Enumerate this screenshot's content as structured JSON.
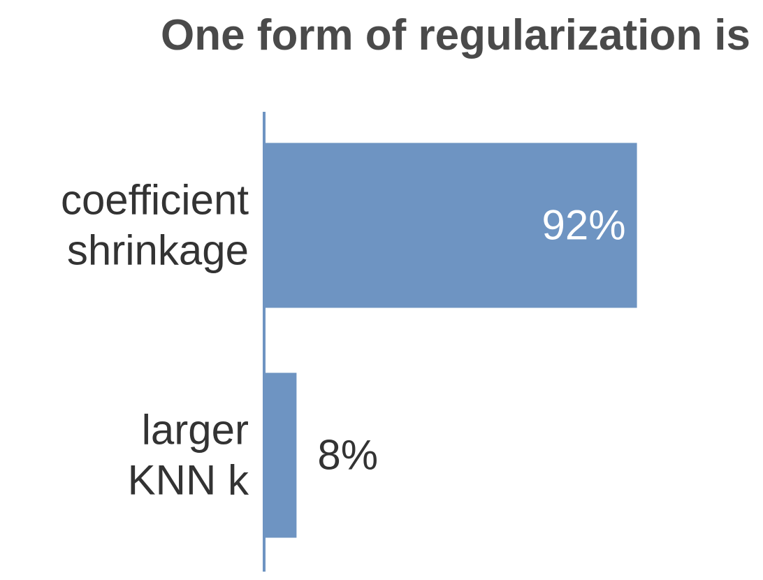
{
  "chart_data": {
    "type": "bar",
    "orientation": "horizontal",
    "title": "One form of regularization is",
    "categories": [
      "coefficient shrinkage",
      "larger KNN k"
    ],
    "category_lines": [
      [
        "coefficient",
        "shrinkage"
      ],
      [
        "larger",
        "KNN k"
      ]
    ],
    "values": [
      92,
      8
    ],
    "value_labels": [
      "92%",
      "8%"
    ],
    "xlim": [
      0,
      100
    ],
    "grid": false,
    "legend": "none"
  },
  "colors": {
    "bar": "#6e94c2",
    "axis": "#6e94c2",
    "label_inside": "#ffffff",
    "label_outside": "#333333",
    "title": "#4a4a4a"
  }
}
